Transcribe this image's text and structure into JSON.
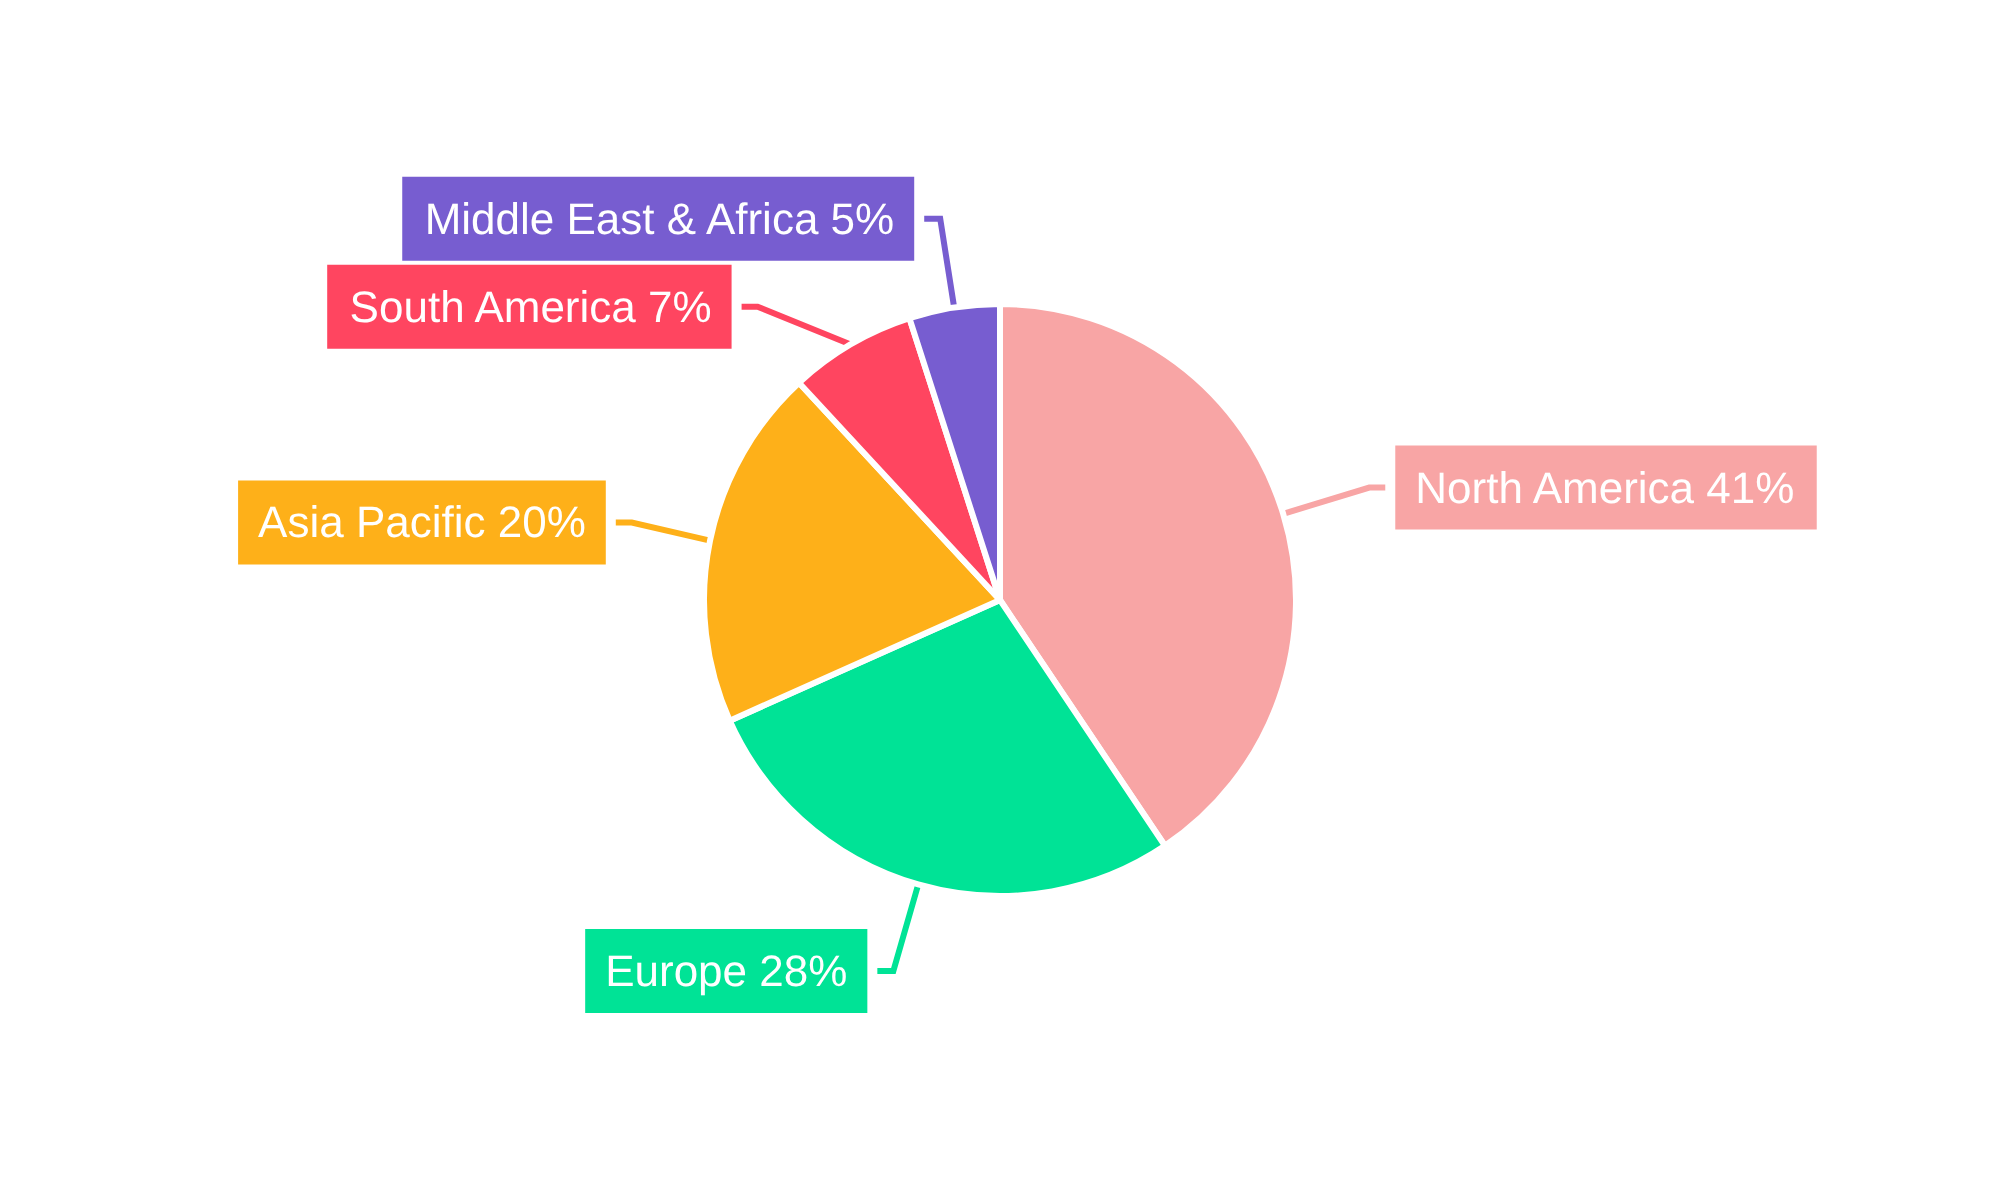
{
  "chart_data": {
    "type": "pie",
    "categories": [
      "North America",
      "Europe",
      "Asia Pacific",
      "South America",
      "Middle East & Africa"
    ],
    "values": [
      41,
      28,
      20,
      7,
      5
    ],
    "value_labels": [
      "41%",
      "28%",
      "20%",
      "7%",
      "5%"
    ],
    "colors": [
      "#f8a5a5",
      "#00e396",
      "#feb019",
      "#ff4560",
      "#775dd0"
    ]
  }
}
